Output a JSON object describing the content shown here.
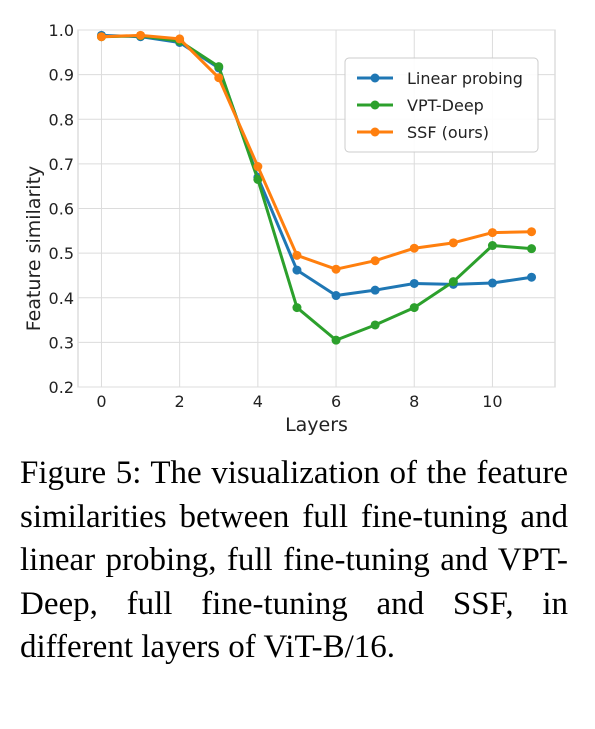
{
  "chart_data": {
    "type": "line",
    "xlabel": "Layers",
    "ylabel": "Feature similarity",
    "xlim": [
      -0.6,
      11.6
    ],
    "ylim": [
      0.2,
      1.0
    ],
    "xticks": [
      0,
      2,
      4,
      6,
      8,
      10
    ],
    "yticks": [
      0.2,
      0.3,
      0.4,
      0.5,
      0.6,
      0.7,
      0.8,
      0.9,
      1.0
    ],
    "grid": true,
    "legend_position": "top-right",
    "x": [
      0,
      1,
      2,
      3,
      4,
      5,
      6,
      7,
      8,
      9,
      10,
      11
    ],
    "series": [
      {
        "name": "Linear probing",
        "color": "#1f77b4",
        "values": [
          0.988,
          0.985,
          0.972,
          0.915,
          0.67,
          0.462,
          0.405,
          0.417,
          0.432,
          0.43,
          0.433,
          0.446
        ]
      },
      {
        "name": "VPT-Deep",
        "color": "#2ca02c",
        "values": [
          0.985,
          0.987,
          0.975,
          0.918,
          0.665,
          0.378,
          0.305,
          0.339,
          0.378,
          0.436,
          0.517,
          0.51
        ]
      },
      {
        "name": "SSF (ours)",
        "color": "#ff7f0e",
        "values": [
          0.985,
          0.988,
          0.98,
          0.893,
          0.694,
          0.495,
          0.464,
          0.483,
          0.511,
          0.523,
          0.546,
          0.548
        ]
      }
    ]
  },
  "caption": "Figure 5: The visualization of the feature similarities between full fine-tuning and linear probing, full fine-tuning and VPT-Deep, full fine-tuning and SSF, in different layers of ViT-B/16."
}
